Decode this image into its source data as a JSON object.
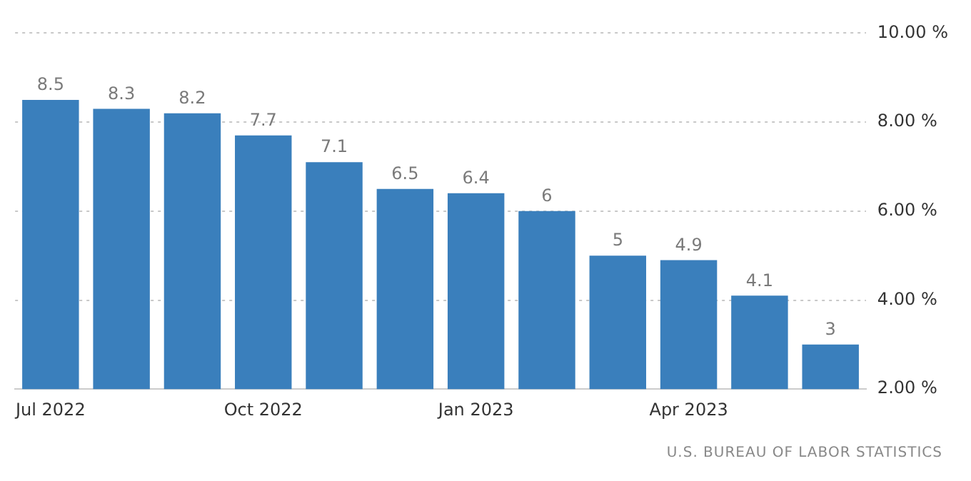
{
  "chart_data": {
    "type": "bar",
    "categories": [
      "Jul 2022",
      null,
      null,
      "Oct 2022",
      null,
      null,
      "Jan 2023",
      null,
      null,
      "Apr 2023",
      null,
      null
    ],
    "values": [
      8.5,
      8.3,
      8.2,
      7.7,
      7.1,
      6.5,
      6.4,
      6,
      5,
      4.9,
      4.1,
      3
    ],
    "color": "#3a7fbc",
    "ylim": [
      2,
      10
    ],
    "yticks": [
      {
        "value": 2,
        "label": "2.00 %"
      },
      {
        "value": 4,
        "label": "4.00 %"
      },
      {
        "value": 6,
        "label": "6.00 %"
      },
      {
        "value": 8,
        "label": "8.00 %"
      },
      {
        "value": 10,
        "label": "10.00 %"
      }
    ],
    "grid": "y",
    "data_labels": true,
    "annotations": [
      "U.S. BUREAU OF LABOR STATISTICS"
    ]
  }
}
